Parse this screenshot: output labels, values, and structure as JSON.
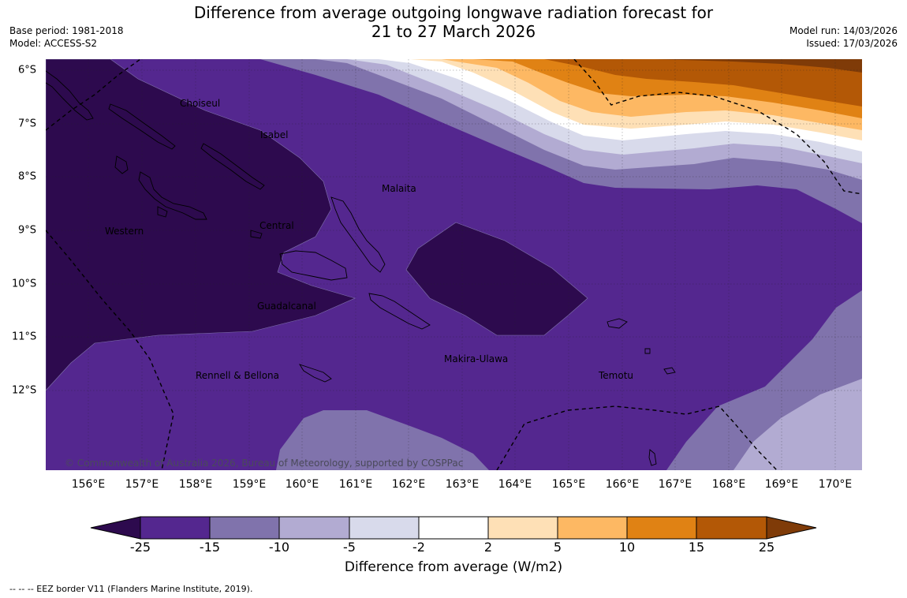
{
  "title_line1": "Difference from average outgoing longwave radiation forecast for",
  "title_line2": "21 to 27 March 2026",
  "base_period": "Base period: 1981-2018",
  "model": "Model: ACCESS-S2",
  "model_run": "Model run: 14/03/2026",
  "issued": "Issued: 17/03/2026",
  "lon_labels": [
    "156°E",
    "157°E",
    "158°E",
    "159°E",
    "160°E",
    "161°E",
    "162°E",
    "163°E",
    "164°E",
    "165°E",
    "166°E",
    "167°E",
    "168°E",
    "169°E",
    "170°E"
  ],
  "lat_labels": [
    "6°S",
    "7°S",
    "8°S",
    "9°S",
    "10°S",
    "11°S",
    "12°S"
  ],
  "places": {
    "choiseul": "Choiseul",
    "isabel": "Isabel",
    "malaita": "Malaita",
    "western": "Western",
    "central": "Central",
    "guadalcanal": "Guadalcanal",
    "rennell": "Rennell & Bellona",
    "makira": "Makira-Ulawa",
    "temotu": "Temotu"
  },
  "copyright": "© Commonwealth of Australia 2026, Bureau of Meteorology, supported by COSPPac",
  "colorbar": {
    "ticks": [
      "-25",
      "-15",
      "-10",
      "-5",
      "-2",
      "2",
      "5",
      "10",
      "15",
      "25"
    ],
    "colors": {
      "below": "#2d0a4e",
      "c1": "#54278f",
      "c2": "#8073ac",
      "c3": "#b2abd2",
      "c4": "#d8daeb",
      "c5": "#ffffff",
      "c6": "#fee0b6",
      "c7": "#fdb863",
      "c8": "#e08214",
      "c9": "#b35806",
      "above": "#7f3b08"
    },
    "label": "Difference from average (W/m2)"
  },
  "footnote": "--  --  -- EEZ border V11 (Flanders Marine Institute, 2019)."
}
